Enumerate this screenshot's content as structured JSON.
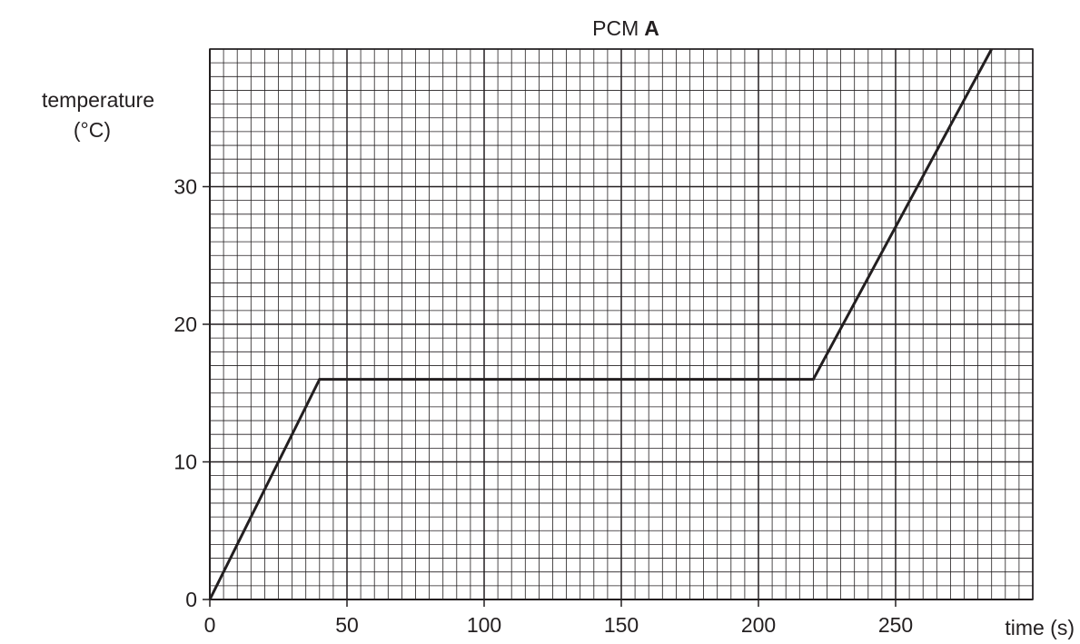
{
  "chart_data": {
    "type": "line",
    "title_prefix": "PCM",
    "title_bold": "A",
    "xlabel": "time (s)",
    "ylabel_line1": "temperature",
    "ylabel_line2": "(°C)",
    "xlim": [
      0,
      300
    ],
    "ylim": [
      0,
      40
    ],
    "x_ticks": [
      0,
      50,
      100,
      150,
      200,
      250
    ],
    "x_tick_labels": [
      "0",
      "50",
      "100",
      "150",
      "200",
      "250"
    ],
    "y_ticks": [
      0,
      10,
      20,
      30
    ],
    "y_tick_labels": [
      "0",
      "10",
      "20",
      "30"
    ],
    "minor_x_step": 5,
    "minor_y_step": 1,
    "major_x_step": 50,
    "major_y_step": 10,
    "grid": true,
    "line_color": "#231f20",
    "grid_color": "#231f20",
    "series": [
      {
        "x": [
          0,
          40,
          220,
          285
        ],
        "y": [
          0,
          16,
          16,
          40
        ]
      }
    ]
  }
}
